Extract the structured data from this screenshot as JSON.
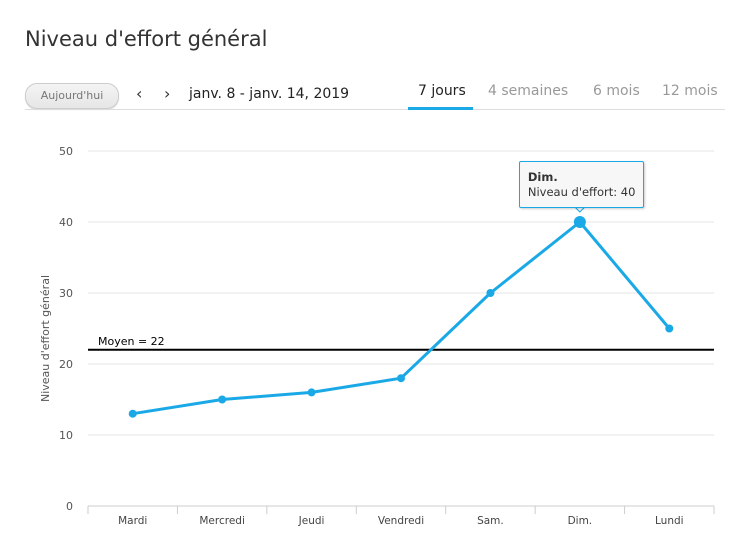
{
  "header": {
    "title": "Niveau d'effort général",
    "today_label": "Aujourd'hui",
    "prev_icon": "chevron-left-icon",
    "next_icon": "chevron-right-icon",
    "prev_glyph": "‹",
    "next_glyph": "›",
    "date_range": "janv. 8 - janv. 14, 2019"
  },
  "tabs": [
    {
      "label": "7 jours",
      "active": true
    },
    {
      "label": "4 semaines"
    },
    {
      "label": "6 mois"
    },
    {
      "label": "12 mois"
    }
  ],
  "tooltip": {
    "title": "Dim.",
    "text": "Niveau d'effort: 40"
  },
  "colors": {
    "series": "#1aa9e6",
    "average": "#000000",
    "grid": "#e6e6e6"
  },
  "chart_data": {
    "type": "line",
    "title": "Niveau d'effort général",
    "xlabel": "",
    "ylabel": "Niveau d'effort général",
    "categories": [
      "Mardi",
      "Mercredi",
      "Jeudi",
      "Vendredi",
      "Sam.",
      "Dim.",
      "Lundi"
    ],
    "series": [
      {
        "name": "Niveau d'effort",
        "values": [
          13,
          15,
          16,
          18,
          30,
          40,
          25
        ]
      }
    ],
    "ylim": [
      0,
      50
    ],
    "yticks": [
      0,
      10,
      20,
      30,
      40,
      50
    ],
    "grid": true,
    "average": {
      "value": 22,
      "label": "Moyen = 22"
    },
    "highlighted_index": 5
  }
}
